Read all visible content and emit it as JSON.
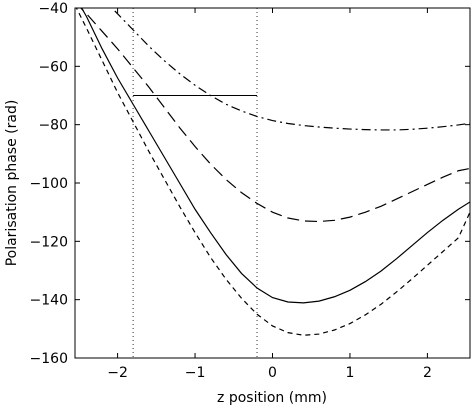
{
  "chart_data": {
    "type": "line",
    "xlabel": "z  position  (mm)",
    "ylabel": "Polarisation  phase  (rad)",
    "xlim": [
      -2.55,
      2.55
    ],
    "ylim": [
      -160,
      -40
    ],
    "xticks": [
      -2,
      -1,
      0,
      1,
      2
    ],
    "xtick_labels": [
      "−2",
      "−1",
      "0",
      "1",
      "2"
    ],
    "yticks": [
      -160,
      -140,
      -120,
      -100,
      -80,
      -60,
      -40
    ],
    "ytick_labels": [
      "−160",
      "−140",
      "−120",
      "−100",
      "−80",
      "−60",
      "−40"
    ],
    "grid": false,
    "series": [
      {
        "style": "solid",
        "x": [
          -2.55,
          -2.4,
          -2.2,
          -2.0,
          -1.8,
          -1.6,
          -1.4,
          -1.2,
          -1.0,
          -0.8,
          -0.6,
          -0.4,
          -0.2,
          0.0,
          0.2,
          0.4,
          0.6,
          0.8,
          1.0,
          1.2,
          1.4,
          1.6,
          1.8,
          2.0,
          2.2,
          2.4,
          2.55
        ],
        "y": [
          -36,
          -43,
          -54,
          -64,
          -73,
          -82,
          -91,
          -100,
          -109,
          -117,
          -124.5,
          -131,
          -136,
          -139.3,
          -140.8,
          -141.1,
          -140.5,
          -139,
          -136.8,
          -133.8,
          -130.2,
          -126,
          -121.5,
          -117,
          -112.8,
          -109,
          -106.5
        ]
      },
      {
        "style": "dashed-short",
        "x": [
          -2.55,
          -2.4,
          -2.2,
          -2.0,
          -1.8,
          -1.6,
          -1.4,
          -1.2,
          -1.0,
          -0.8,
          -0.6,
          -0.4,
          -0.2,
          0.0,
          0.2,
          0.4,
          0.6,
          0.8,
          1.0,
          1.2,
          1.4,
          1.6,
          1.8,
          2.0,
          2.2,
          2.4,
          2.55
        ],
        "y": [
          -39,
          -47,
          -58,
          -69,
          -79,
          -89,
          -98.5,
          -108,
          -117,
          -125.5,
          -133,
          -139.5,
          -145,
          -149,
          -151.3,
          -152.2,
          -151.8,
          -150.4,
          -148.2,
          -145.2,
          -141.6,
          -137.4,
          -132.9,
          -128.2,
          -123.5,
          -118.8,
          -110
        ]
      },
      {
        "style": "dashed-long",
        "x": [
          -2.55,
          -2.4,
          -2.2,
          -2.0,
          -1.8,
          -1.6,
          -1.4,
          -1.2,
          -1.0,
          -0.8,
          -0.6,
          -0.4,
          -0.2,
          0.0,
          0.2,
          0.4,
          0.6,
          0.8,
          1.0,
          1.2,
          1.4,
          1.6,
          1.8,
          2.0,
          2.2,
          2.4,
          2.55
        ],
        "y": [
          -38,
          -42,
          -48,
          -54,
          -60.5,
          -67,
          -74,
          -81,
          -87.5,
          -93.5,
          -98.8,
          -103.3,
          -107,
          -110,
          -112,
          -113,
          -113.2,
          -112.8,
          -111.7,
          -110,
          -108,
          -105.5,
          -103,
          -100.5,
          -98,
          -95.8,
          -95
        ]
      },
      {
        "style": "dash-dot",
        "x": [
          -2.55,
          -2.4,
          -2.2,
          -2.0,
          -1.8,
          -1.6,
          -1.4,
          -1.2,
          -1.0,
          -0.8,
          -0.6,
          -0.4,
          -0.2,
          0.0,
          0.2,
          0.4,
          0.6,
          0.8,
          1.0,
          1.2,
          1.4,
          1.6,
          1.8,
          2.0,
          2.2,
          2.4,
          2.55
        ],
        "y": [
          -27,
          -31,
          -36.5,
          -42,
          -47.5,
          -53,
          -58,
          -62.5,
          -66.5,
          -70,
          -73,
          -75.3,
          -77.2,
          -78.6,
          -79.6,
          -80.3,
          -80.8,
          -81.2,
          -81.5,
          -81.7,
          -81.8,
          -81.8,
          -81.6,
          -81.2,
          -80.7,
          -80.1,
          -79.5
        ]
      }
    ],
    "annotations": {
      "vertical_dotted_x": [
        -1.8,
        -0.2
      ],
      "horizontal_segment": {
        "x": [
          -1.8,
          -0.2
        ],
        "y": -70
      }
    }
  }
}
